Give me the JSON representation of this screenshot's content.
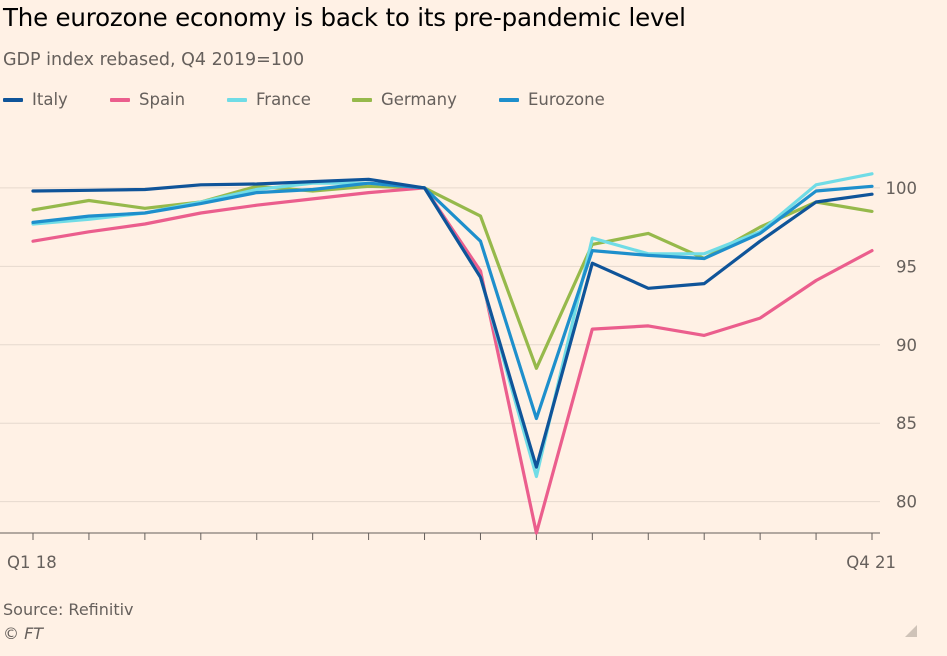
{
  "header": {
    "title": "The eurozone economy is back to its pre-pandemic level",
    "subtitle": "GDP index rebased, Q4 2019=100"
  },
  "footer": {
    "source": "Source: Refinitiv",
    "credit": "© FT"
  },
  "icons": {
    "corner": "resize-handle-icon"
  },
  "colors": {
    "background": "#fff1e5",
    "gridline": "#e6d9ce",
    "axis": "#66605c",
    "Italy": "#0f5499",
    "Spain": "#eb5e8d",
    "France": "#70dce6",
    "Germany": "#96b94b",
    "Eurozone": "#1e8fcc"
  },
  "chart_data": {
    "type": "line",
    "title": "The eurozone economy is back to its pre-pandemic level",
    "subtitle": "GDP index rebased, Q4 2019=100",
    "xlabel": "",
    "ylabel": "",
    "x": [
      "Q1 18",
      "Q2 18",
      "Q3 18",
      "Q4 18",
      "Q1 19",
      "Q2 19",
      "Q3 19",
      "Q4 19",
      "Q1 20",
      "Q2 20",
      "Q3 20",
      "Q4 20",
      "Q1 21",
      "Q2 21",
      "Q3 21",
      "Q4 21"
    ],
    "x_tick_labels": [
      "Q1 18",
      "Q4 21"
    ],
    "y_ticks": [
      80,
      85,
      90,
      95,
      100
    ],
    "ylim": [
      78,
      103.5
    ],
    "y_axis_side": "right",
    "grid": "horizontal",
    "legend_position": "top",
    "series": [
      {
        "name": "Italy",
        "values": [
          99.8,
          99.85,
          99.9,
          100.2,
          100.25,
          100.4,
          100.55,
          100.0,
          94.3,
          82.2,
          95.2,
          93.6,
          93.9,
          96.6,
          99.1,
          99.6
        ]
      },
      {
        "name": "Spain",
        "values": [
          96.6,
          97.2,
          97.7,
          98.4,
          98.9,
          99.3,
          99.7,
          100.0,
          94.7,
          78.0,
          91.0,
          91.2,
          90.6,
          91.7,
          94.1,
          96.0
        ]
      },
      {
        "name": "France",
        "values": [
          97.7,
          98.0,
          98.4,
          99.1,
          99.9,
          100.3,
          100.3,
          100.0,
          94.3,
          81.6,
          96.8,
          95.8,
          95.8,
          97.2,
          100.2,
          100.9
        ]
      },
      {
        "name": "Germany",
        "values": [
          98.6,
          99.2,
          98.7,
          99.1,
          100.1,
          99.8,
          100.1,
          100.0,
          98.2,
          88.5,
          96.4,
          97.1,
          95.5,
          97.5,
          99.1,
          98.5
        ]
      },
      {
        "name": "Eurozone",
        "values": [
          97.8,
          98.2,
          98.4,
          99.0,
          99.7,
          99.9,
          100.3,
          100.0,
          96.6,
          85.3,
          96.0,
          95.7,
          95.5,
          97.1,
          99.8,
          100.1
        ]
      }
    ]
  }
}
